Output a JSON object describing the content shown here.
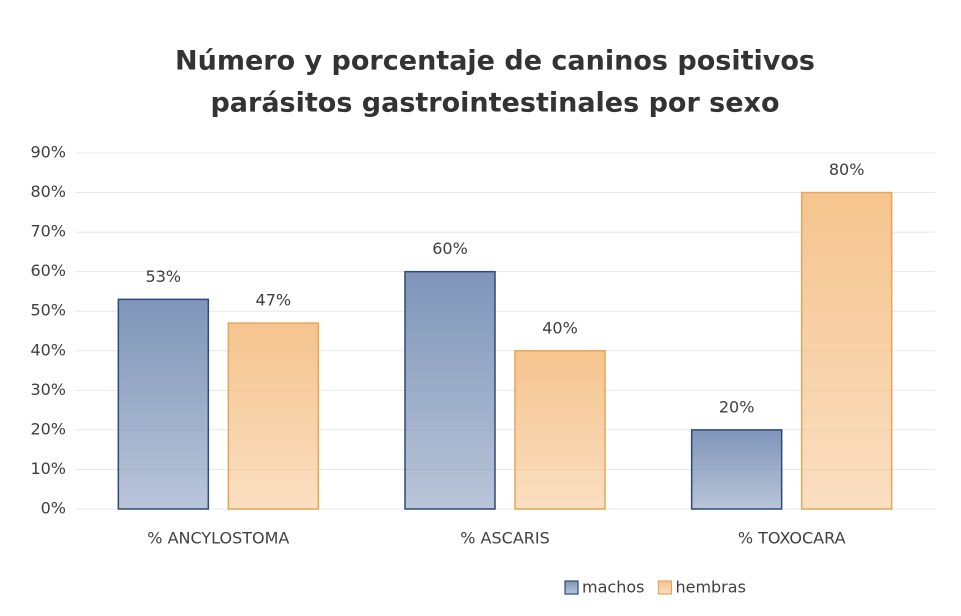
{
  "chart_data": {
    "type": "bar",
    "title": [
      "Número y porcentaje de caninos positivos",
      "parásitos gastrointestinales por sexo"
    ],
    "categories": [
      "% ANCYLOSTOMA",
      "% ASCARIS",
      "% TOXOCARA"
    ],
    "series": [
      {
        "name": "machos",
        "color": "#7f95b9",
        "edgecolor": "#2e4a76",
        "values": [
          53,
          60,
          20
        ],
        "value_labels": [
          "53%",
          "60%",
          "20%"
        ]
      },
      {
        "name": "hembras",
        "color": "#f6c48e",
        "edgecolor": "#e5a55a",
        "values": [
          47,
          40,
          80
        ],
        "value_labels": [
          "47%",
          "40%",
          "80%"
        ]
      }
    ],
    "ylim": [
      0,
      90
    ],
    "yticks": [
      {
        "value": 0,
        "label": "0%"
      },
      {
        "value": 10,
        "label": "10%"
      },
      {
        "value": 20,
        "label": "20%"
      },
      {
        "value": 30,
        "label": "30%"
      },
      {
        "value": 40,
        "label": "40%"
      },
      {
        "value": 50,
        "label": "50%"
      },
      {
        "value": 60,
        "label": "60%"
      },
      {
        "value": 70,
        "label": "70%"
      },
      {
        "value": 80,
        "label": "80%"
      },
      {
        "value": 90,
        "label": "90%"
      }
    ],
    "grid": true,
    "legend": "bottom"
  }
}
